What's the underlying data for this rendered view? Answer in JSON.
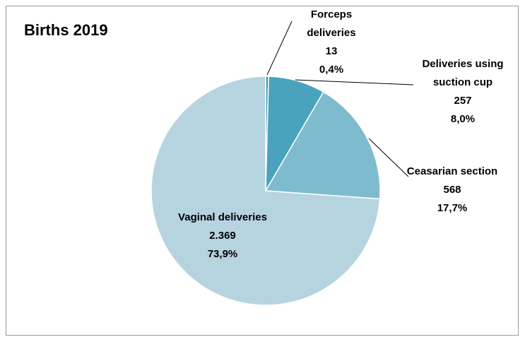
{
  "chart_data": {
    "type": "pie",
    "title": "Births 2019",
    "categories": [
      "Forceps deliveries",
      "Deliveries using suction cup",
      "Ceasarian section",
      "Vaginal deliveries"
    ],
    "values": [
      13,
      257,
      568,
      2369
    ],
    "value_labels": [
      "13",
      "257",
      "568",
      "2.369"
    ],
    "percent_labels": [
      "0,4%",
      "8,0%",
      "17,7%",
      "73,9%"
    ],
    "colors": [
      "#3f97b1",
      "#4aa3bd",
      "#7fbbcf",
      "#b6d4e0"
    ]
  }
}
